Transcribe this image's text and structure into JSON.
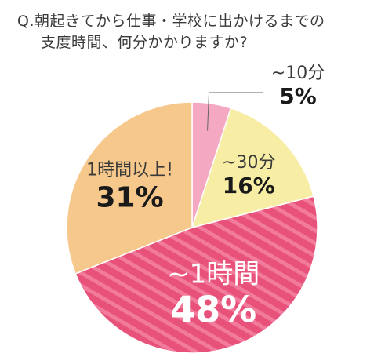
{
  "question": {
    "line1": "Q.朝起きてから仕事・学校に出かけるまでの",
    "line2": "支度時間、何分かかりますか?"
  },
  "chart_data": {
    "type": "pie",
    "categories": [
      "~10分",
      "~30分",
      "~1時間",
      "1時間以上!"
    ],
    "values": [
      5,
      16,
      48,
      31
    ],
    "value_labels": [
      "5%",
      "16%",
      "48%",
      "31%"
    ],
    "colors": [
      "#f4a8c2",
      "#f7eda4",
      "#e8527a",
      "#f7c88c"
    ],
    "stripe_color": "#f27a9a",
    "start": "top",
    "direction": "clockwise"
  }
}
